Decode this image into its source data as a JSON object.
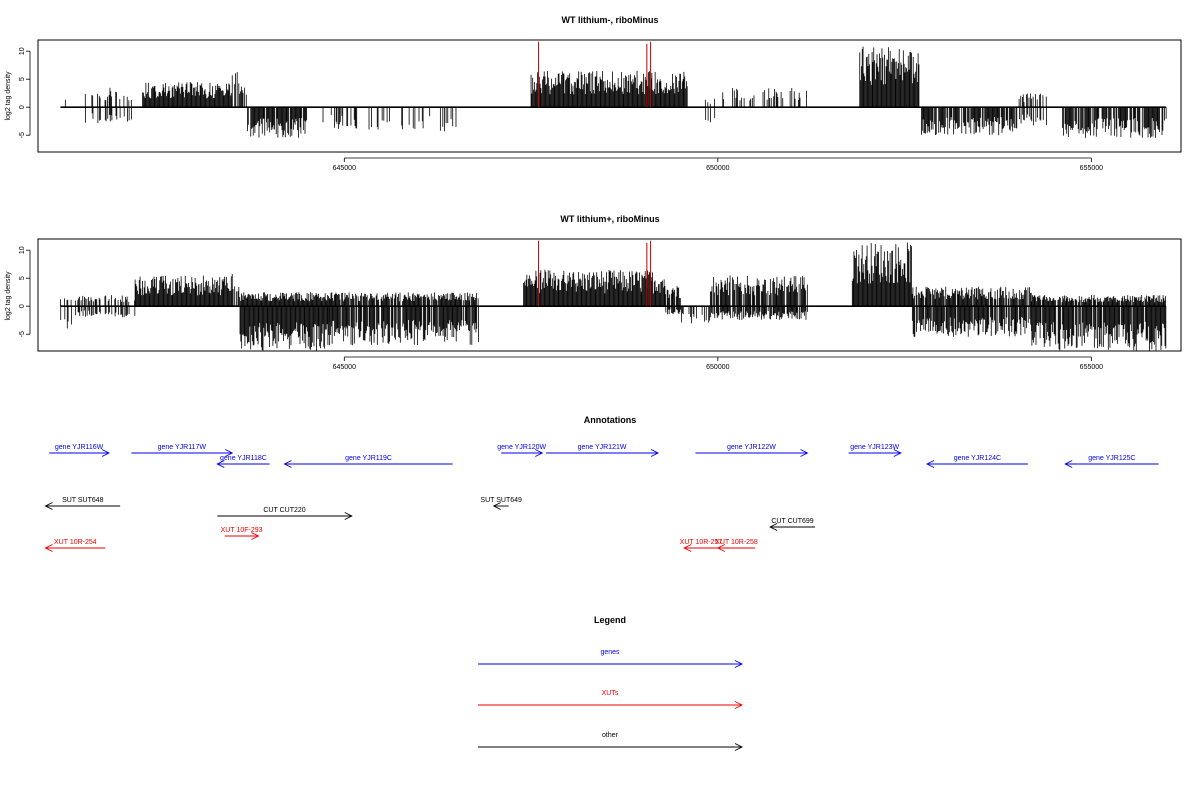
{
  "chart_data": [
    {
      "type": "bar",
      "title": "WT lithium-, riboMinus",
      "ylabel": "log2 tag density",
      "xlim": [
        640900,
        656200
      ],
      "ylim": [
        -8,
        12
      ],
      "x_ticks": [
        645000,
        650000,
        655000
      ],
      "y_ticks": [
        -5,
        0,
        5,
        10
      ],
      "grid": false,
      "baseline": {
        "x_range": [
          641200,
          656000
        ]
      },
      "highlight_color": "#cc0000",
      "highlights": [
        {
          "x": 647600,
          "value": 11.7
        },
        {
          "x": 649050,
          "value": 11.3
        },
        {
          "x": 649100,
          "value": 11.7
        }
      ],
      "profile": [
        {
          "x_range": [
            641200,
            641300
          ],
          "plus_max": 2.0,
          "minus_max": 0,
          "density": 0.2
        },
        {
          "x_range": [
            641500,
            642200
          ],
          "plus_max": 3.5,
          "minus_max": -3,
          "density": 0.3
        },
        {
          "x_range": [
            642300,
            643500
          ],
          "plus_max": 4.5,
          "minus_max": 0,
          "density": 1.0
        },
        {
          "x_range": [
            643500,
            643600
          ],
          "plus_max": 6.5,
          "minus_max": 0,
          "density": 0.5
        },
        {
          "x_range": [
            643600,
            643700
          ],
          "plus_max": 4.0,
          "minus_max": 0,
          "density": 0.5
        },
        {
          "x_range": [
            643700,
            644500
          ],
          "plus_max": 0,
          "minus_max": -5.5,
          "density": 0.9
        },
        {
          "x_range": [
            644700,
            645600
          ],
          "plus_max": 0,
          "minus_max": -4,
          "density": 0.3
        },
        {
          "x_range": [
            645600,
            646500
          ],
          "plus_max": 0,
          "minus_max": -4.5,
          "density": 0.2
        },
        {
          "x_range": [
            647500,
            649600
          ],
          "plus_max": 6.5,
          "minus_max": 0,
          "density": 1.0
        },
        {
          "x_range": [
            649800,
            650000
          ],
          "plus_max": 1.5,
          "minus_max": -3,
          "density": 0.3
        },
        {
          "x_range": [
            650000,
            651200
          ],
          "plus_max": 3.5,
          "minus_max": 0,
          "density": 0.3
        },
        {
          "x_range": [
            651900,
            652700
          ],
          "plus_max": 11.0,
          "minus_max": 0,
          "density": 1.0
        },
        {
          "x_range": [
            652700,
            654000
          ],
          "plus_max": 0,
          "minus_max": -5,
          "density": 0.8
        },
        {
          "x_range": [
            654000,
            654400
          ],
          "plus_max": 2.5,
          "minus_max": -3.5,
          "density": 0.4
        },
        {
          "x_range": [
            654600,
            656000
          ],
          "plus_max": 0,
          "minus_max": -5.5,
          "density": 0.8
        }
      ]
    },
    {
      "type": "bar",
      "title": "WT lithium+, riboMinus",
      "ylabel": "log2 tag density",
      "xlim": [
        640900,
        656200
      ],
      "ylim": [
        -8,
        12
      ],
      "x_ticks": [
        645000,
        650000,
        655000
      ],
      "y_ticks": [
        -5,
        0,
        5,
        10
      ],
      "grid": false,
      "baseline": {
        "x_range": [
          641200,
          656000
        ]
      },
      "highlight_color": "#cc0000",
      "highlights": [
        {
          "x": 647600,
          "value": 11.7
        },
        {
          "x": 649050,
          "value": 11.3
        },
        {
          "x": 649100,
          "value": 11.7
        }
      ],
      "profile": [
        {
          "x_range": [
            641200,
            641400
          ],
          "plus_max": 1.5,
          "minus_max": -4.5,
          "density": 0.4
        },
        {
          "x_range": [
            641400,
            642200
          ],
          "plus_max": 2.0,
          "minus_max": -2,
          "density": 0.5
        },
        {
          "x_range": [
            642200,
            643500
          ],
          "plus_max": 5.5,
          "minus_max": 0,
          "density": 1.0
        },
        {
          "x_range": [
            643500,
            643600
          ],
          "plus_max": 7.0,
          "minus_max": 0,
          "density": 0.5
        },
        {
          "x_range": [
            643600,
            644800
          ],
          "plus_max": 2.5,
          "minus_max": -8,
          "density": 1.0
        },
        {
          "x_range": [
            644800,
            646800
          ],
          "plus_max": 2.5,
          "minus_max": -7,
          "density": 0.9
        },
        {
          "x_range": [
            647400,
            649300
          ],
          "plus_max": 6.5,
          "minus_max": 0,
          "density": 1.0
        },
        {
          "x_range": [
            649300,
            649500
          ],
          "plus_max": 4.0,
          "minus_max": -1.5,
          "density": 0.8
        },
        {
          "x_range": [
            649500,
            649900
          ],
          "plus_max": 0,
          "minus_max": -3.5,
          "density": 0.3
        },
        {
          "x_range": [
            649900,
            651200
          ],
          "plus_max": 5.5,
          "minus_max": -2.5,
          "density": 0.9
        },
        {
          "x_range": [
            651800,
            652600
          ],
          "plus_max": 11.5,
          "minus_max": 0,
          "density": 1.0
        },
        {
          "x_range": [
            652600,
            654200
          ],
          "plus_max": 3.5,
          "minus_max": -5.5,
          "density": 0.9
        },
        {
          "x_range": [
            654200,
            656000
          ],
          "plus_max": 2.0,
          "minus_max": -8,
          "density": 0.9
        }
      ]
    }
  ],
  "annotations": {
    "title": "Annotations",
    "colors": {
      "genes": "#0000ee",
      "xuts": "#ee0000",
      "other": "#000000"
    },
    "features": [
      {
        "label": "gene YJR116W",
        "color": "#0000ee",
        "strand": "+",
        "x1": 641050,
        "x2": 641850,
        "row": 0
      },
      {
        "label": "gene YJR117W",
        "color": "#0000ee",
        "strand": "+",
        "x1": 642150,
        "x2": 643500,
        "row": 0
      },
      {
        "label": "gene YJR118C",
        "color": "#0000ee",
        "strand": "-",
        "x1": 643300,
        "x2": 644000,
        "row": 1
      },
      {
        "label": "gene YJR119C",
        "color": "#0000ee",
        "strand": "-",
        "x1": 644200,
        "x2": 646450,
        "row": 1
      },
      {
        "label": "gene YJR120W",
        "color": "#0000ee",
        "strand": "+",
        "x1": 647100,
        "x2": 647650,
        "row": 0
      },
      {
        "label": "gene YJR121W",
        "color": "#0000ee",
        "strand": "+",
        "x1": 647700,
        "x2": 649200,
        "row": 0
      },
      {
        "label": "gene YJR122W",
        "color": "#0000ee",
        "strand": "+",
        "x1": 649700,
        "x2": 651200,
        "row": 0
      },
      {
        "label": "gene YJR123W",
        "color": "#0000ee",
        "strand": "+",
        "x1": 651750,
        "x2": 652450,
        "row": 0
      },
      {
        "label": "gene YJR124C",
        "color": "#0000ee",
        "strand": "-",
        "x1": 652800,
        "x2": 654150,
        "row": 1
      },
      {
        "label": "gene YJR125C",
        "color": "#0000ee",
        "strand": "-",
        "x1": 654650,
        "x2": 655900,
        "row": 1
      },
      {
        "label": "SUT SUT648",
        "color": "#000000",
        "strand": "-",
        "x1": 641000,
        "x2": 642000,
        "row": 2
      },
      {
        "label": "SUT SUT649",
        "color": "#000000",
        "strand": "-",
        "x1": 647000,
        "x2": 647200,
        "row": 2
      },
      {
        "label": "CUT CUT220",
        "color": "#000000",
        "strand": "+",
        "x1": 643300,
        "x2": 645100,
        "row": 3
      },
      {
        "label": "CUT CUT699",
        "color": "#000000",
        "strand": "-",
        "x1": 650700,
        "x2": 651300,
        "row": 4
      },
      {
        "label": "XUT 10R-254",
        "color": "#ee0000",
        "strand": "-",
        "x1": 641000,
        "x2": 641800,
        "row": 5
      },
      {
        "label": "XUT 10F-293",
        "color": "#ee0000",
        "strand": "+",
        "x1": 643400,
        "x2": 643850,
        "row": 6
      },
      {
        "label": "XUT 10R-257",
        "color": "#ee0000",
        "strand": "-",
        "x1": 649550,
        "x2": 650000,
        "row": 5
      },
      {
        "label": "XUT 10R-258",
        "color": "#ee0000",
        "strand": "-",
        "x1": 650000,
        "x2": 650500,
        "row": 5
      }
    ]
  },
  "legend": {
    "title": "Legend",
    "items": [
      {
        "label": "genes",
        "color": "#0000ee"
      },
      {
        "label": "XUTs",
        "color": "#ee0000"
      },
      {
        "label": "other",
        "color": "#000000"
      }
    ]
  }
}
